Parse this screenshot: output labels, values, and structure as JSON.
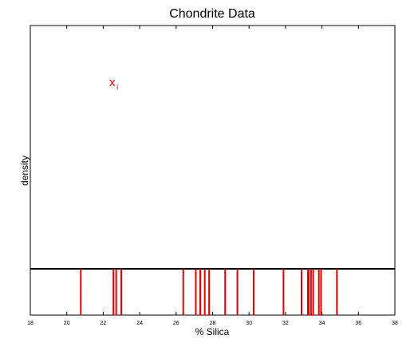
{
  "chart_data": {
    "type": "rug",
    "title": "Chondrite Data",
    "xlabel": "% Silica",
    "ylabel": "density",
    "annotation": "x",
    "annotation_subscript": "i",
    "values": [
      20.77,
      22.56,
      22.71,
      22.99,
      26.39,
      27.08,
      27.32,
      27.33,
      27.57,
      27.81,
      28.69,
      29.36,
      30.25,
      31.89,
      32.88,
      33.23,
      33.28,
      33.4,
      33.52,
      33.83,
      33.95,
      34.82
    ],
    "color": "#e00000",
    "xlim": [
      18,
      38
    ],
    "xticks": [
      18,
      20,
      22,
      24,
      26,
      28,
      30,
      32,
      34,
      36,
      38
    ]
  }
}
